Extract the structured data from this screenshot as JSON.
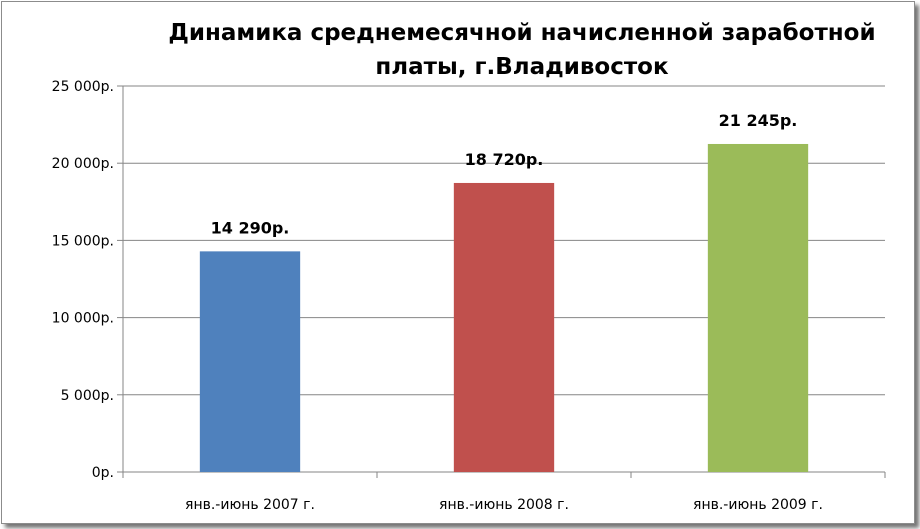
{
  "chart_data": {
    "type": "bar",
    "title": "Динамика среднемесячной начисленной заработной платы, г.Владивосток",
    "xlabel": "",
    "ylabel": "",
    "categories": [
      "янв.-июнь 2007 г.",
      "янв.-июнь 2008 г.",
      "янв.-июнь 2009 г."
    ],
    "values": [
      14290,
      18720,
      21245
    ],
    "data_labels": [
      "14 290р.",
      "18 720р.",
      "21 245р."
    ],
    "bar_colors": [
      "#4f81bd",
      "#c0504d",
      "#9bbb59"
    ],
    "ylim": [
      0,
      25000
    ],
    "yticks": [
      0,
      5000,
      10000,
      15000,
      20000,
      25000
    ],
    "ytick_labels": [
      "0р.",
      "5 000р.",
      "10 000р.",
      "15 000р.",
      "20 000р.",
      "25 000р."
    ],
    "grid": true,
    "legend": "none"
  }
}
